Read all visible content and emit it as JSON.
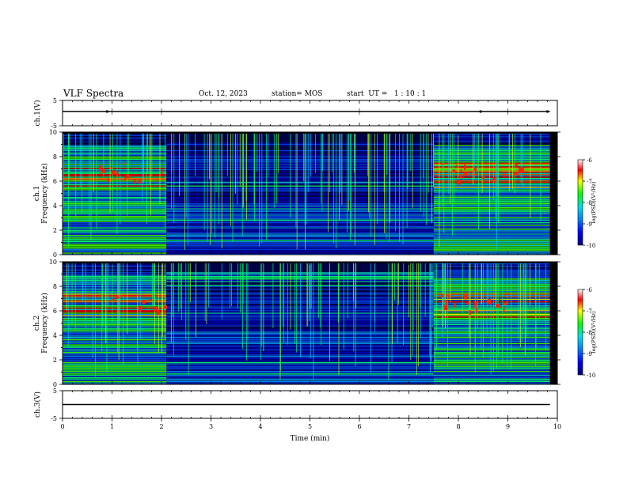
{
  "header": {
    "title": "VLF Spectra",
    "date": "Oct. 12, 2023",
    "station": "station= MOS",
    "start": "start  UT =   1 : 10 : 1"
  },
  "chart_data": [
    {
      "type": "line",
      "panel": "ch1-voltage",
      "ylabel": "ch.1(V)",
      "ylim": [
        -5,
        5
      ],
      "yticks": [
        "5",
        "-5"
      ],
      "series": [
        {
          "x": [
            0,
            9.85
          ],
          "y": [
            0,
            0
          ]
        }
      ]
    },
    {
      "type": "heatmap",
      "panel": "ch1-spectrogram",
      "ylabel_top": "ch.1",
      "ylabel": "Frequency  (kHz)",
      "ylim": [
        0,
        10
      ],
      "yticks": [
        "0",
        "2",
        "4",
        "6",
        "8",
        "10"
      ],
      "quiet_interval_min": [
        2.1,
        7.5
      ],
      "colorbar": {
        "label": "log(PSD)(V²/Hz)",
        "ticks": [
          "-6",
          "-7",
          "-8",
          "-9",
          "-10"
        ],
        "range": [
          -10,
          -6
        ]
      }
    },
    {
      "type": "heatmap",
      "panel": "ch2-spectrogram",
      "ylabel_top": "ch.2",
      "ylabel": "Frequency  (kHz)",
      "ylim": [
        0,
        10
      ],
      "yticks": [
        "0",
        "2",
        "4",
        "6",
        "8",
        "10"
      ],
      "quiet_interval_min": [
        2.1,
        7.5
      ],
      "colorbar": {
        "label": "log(PSD)(V²/Hz)",
        "ticks": [
          "-6",
          "-7",
          "-8",
          "-9",
          "-10"
        ],
        "range": [
          -10,
          -6
        ]
      }
    },
    {
      "type": "line",
      "panel": "ch3-voltage",
      "ylabel": "ch.3(V)",
      "ylim": [
        -5,
        5
      ],
      "yticks": [
        "5",
        "-5"
      ],
      "series": [
        {
          "x": [
            0,
            9.85
          ],
          "y": [
            0,
            0
          ]
        }
      ]
    }
  ],
  "xaxis": {
    "label": "Time  (min)",
    "ticks": [
      "0",
      "1",
      "2",
      "3",
      "4",
      "5",
      "6",
      "7",
      "8",
      "9",
      "10"
    ],
    "xlim": [
      0,
      10
    ]
  },
  "colors": {
    "background": "#000000",
    "low": "#0000aa",
    "mid": "#00c0c0",
    "high": "#00ff00",
    "peak": "#ff0000"
  }
}
